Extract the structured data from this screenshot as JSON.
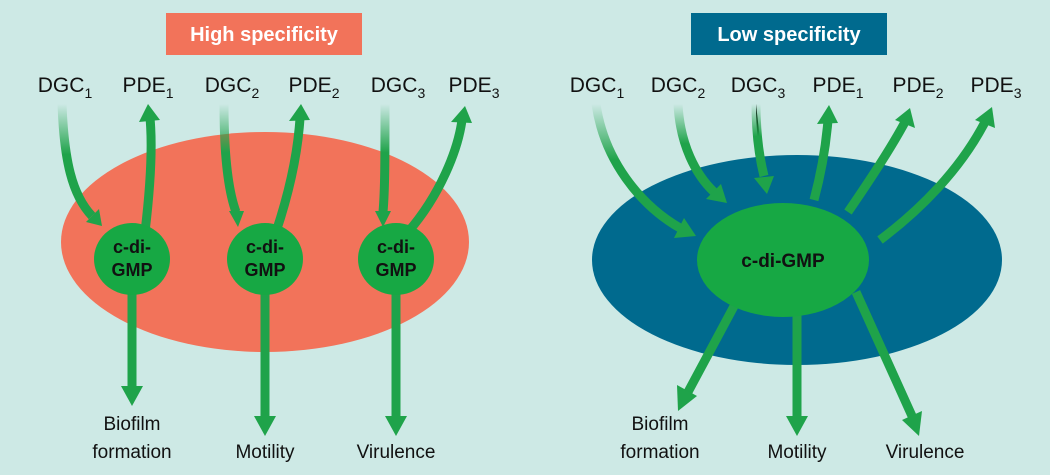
{
  "colors": {
    "background": "#cde9e5",
    "high_accent": "#f2735a",
    "low_accent": "#006a8e",
    "node_green": "#17a844",
    "arrow_green": "#1fa34a"
  },
  "panels": {
    "high": {
      "title": "High specificity",
      "enzymes": [
        {
          "base": "DGC",
          "sub": "1"
        },
        {
          "base": "PDE",
          "sub": "1"
        },
        {
          "base": "DGC",
          "sub": "2"
        },
        {
          "base": "PDE",
          "sub": "2"
        },
        {
          "base": "DGC",
          "sub": "3"
        },
        {
          "base": "PDE",
          "sub": "3"
        }
      ],
      "nodes": [
        {
          "line1": "c-di-",
          "line2": "GMP"
        },
        {
          "line1": "c-di-",
          "line2": "GMP"
        },
        {
          "line1": "c-di-",
          "line2": "GMP"
        }
      ],
      "outcomes": [
        {
          "line1": "Biofilm",
          "line2": "formation"
        },
        {
          "line1": "Motility",
          "line2": ""
        },
        {
          "line1": "Virulence",
          "line2": ""
        }
      ]
    },
    "low": {
      "title": "Low specificity",
      "enzymes": [
        {
          "base": "DGC",
          "sub": "1"
        },
        {
          "base": "DGC",
          "sub": "2"
        },
        {
          "base": "DGC",
          "sub": "3"
        },
        {
          "base": "PDE",
          "sub": "1"
        },
        {
          "base": "PDE",
          "sub": "2"
        },
        {
          "base": "PDE",
          "sub": "3"
        }
      ],
      "node": "c-di-GMP",
      "outcomes": [
        {
          "line1": "Biofilm",
          "line2": "formation"
        },
        {
          "line1": "Motility",
          "line2": ""
        },
        {
          "line1": "Virulence",
          "line2": ""
        }
      ]
    }
  }
}
